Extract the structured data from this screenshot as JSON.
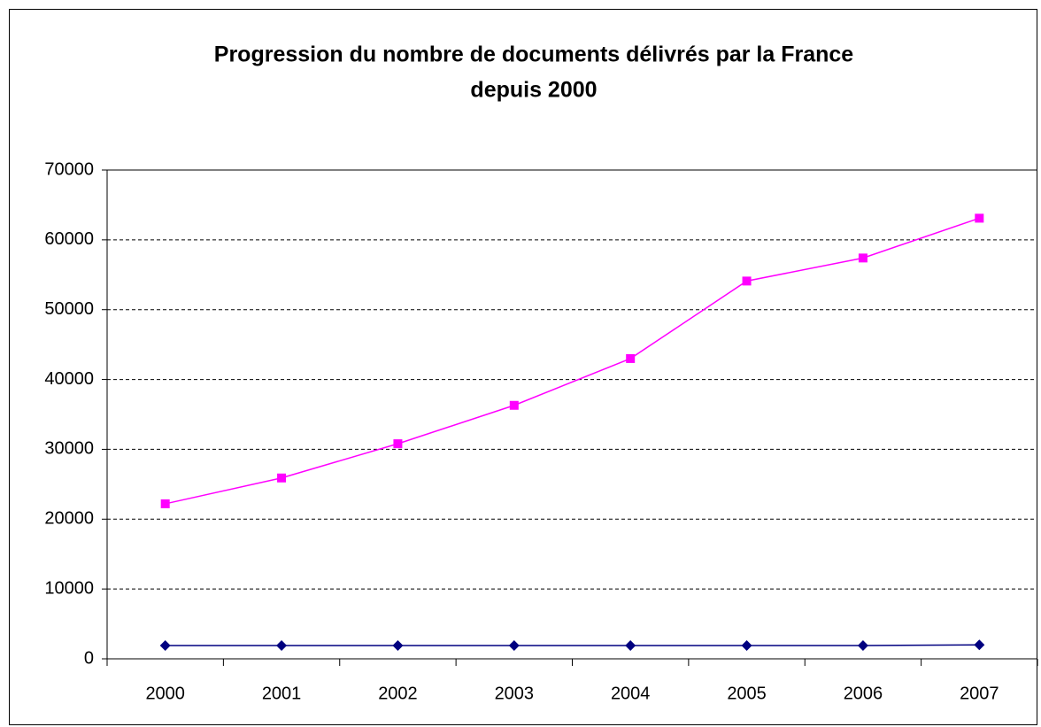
{
  "chart_data": {
    "type": "line",
    "title": [
      "Progression du nombre de documents délivrés par la France",
      "depuis 2000"
    ],
    "categories": [
      "2000",
      "2001",
      "2002",
      "2003",
      "2004",
      "2005",
      "2006",
      "2007"
    ],
    "series": [
      {
        "color": "#ff00ff",
        "marker": "square",
        "values": [
          22200,
          25900,
          30800,
          36300,
          43000,
          54100,
          57400,
          63100
        ]
      },
      {
        "color": "#000080",
        "marker": "diamond",
        "values": [
          1900,
          1900,
          1900,
          1900,
          1900,
          1900,
          1900,
          2000
        ]
      }
    ],
    "ylim": [
      0,
      70000
    ],
    "yticks": [
      0,
      10000,
      20000,
      30000,
      40000,
      50000,
      60000,
      70000
    ],
    "grid": true
  }
}
